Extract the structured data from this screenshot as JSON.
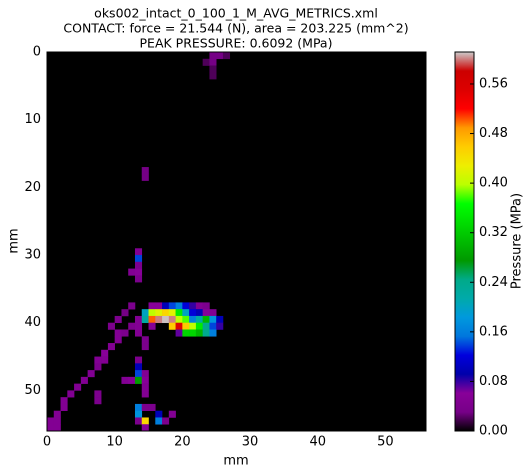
{
  "chart_data": {
    "type": "heatmap",
    "title": [
      "oks002_intact_0_100_1_M_AVG_METRICS.xml",
      "CONTACT: force = 21.544 (N), area = 203.225 (mm^2)",
      "PEAK PRESSURE: 0.6092 (MPa)"
    ],
    "x_label": "mm",
    "y_label": "mm",
    "colorbar_label": "Pressure (MPa)",
    "colormap": "nipy_spectral",
    "background": "#000000",
    "xlim": [
      0,
      56
    ],
    "ylim": [
      56,
      0
    ],
    "xticks": [
      0,
      10,
      20,
      30,
      40,
      50
    ],
    "yticks": [
      0,
      10,
      20,
      30,
      40,
      50
    ],
    "clim": [
      0,
      0.6116
    ],
    "cticks": [
      {
        "value": 0,
        "label": "0.00"
      },
      {
        "value": 0.08,
        "label": "0.08"
      },
      {
        "value": 0.16,
        "label": "0.16"
      },
      {
        "value": 0.24,
        "label": "0.24"
      },
      {
        "value": 0.32,
        "label": "0.32"
      },
      {
        "value": 0.4,
        "label": "0.40"
      },
      {
        "value": 0.48,
        "label": "0.48"
      },
      {
        "value": 0.56,
        "label": "0.56"
      }
    ],
    "cells": [
      [
        0,
        24,
        0.03
      ],
      [
        0,
        25,
        0.03
      ],
      [
        0,
        26,
        0.02
      ],
      [
        1,
        23,
        0.02
      ],
      [
        1,
        24,
        0.03
      ],
      [
        2,
        24,
        0.02
      ],
      [
        3,
        24,
        0.02
      ],
      [
        17,
        14,
        0.03
      ],
      [
        18,
        14,
        0.03
      ],
      [
        29,
        13,
        0.05
      ],
      [
        30,
        13,
        0.14
      ],
      [
        31,
        13,
        0.04
      ],
      [
        32,
        12,
        0.05
      ],
      [
        32,
        13,
        0.06
      ],
      [
        33,
        13,
        0.04
      ],
      [
        37,
        12,
        0.04
      ],
      [
        37,
        15,
        0.06
      ],
      [
        37,
        16,
        0.06
      ],
      [
        37,
        17,
        0.1
      ],
      [
        37,
        18,
        0.14
      ],
      [
        37,
        19,
        0.16
      ],
      [
        37,
        20,
        0.12
      ],
      [
        37,
        21,
        0.08
      ],
      [
        37,
        22,
        0.05
      ],
      [
        37,
        23,
        0.04
      ],
      [
        38,
        11,
        0.03
      ],
      [
        38,
        14,
        0.2
      ],
      [
        38,
        15,
        0.4
      ],
      [
        38,
        16,
        0.42
      ],
      [
        38,
        17,
        0.45
      ],
      [
        38,
        18,
        0.42
      ],
      [
        38,
        19,
        0.35
      ],
      [
        38,
        20,
        0.2
      ],
      [
        38,
        21,
        0.12
      ],
      [
        38,
        22,
        0.1
      ],
      [
        38,
        23,
        0.06
      ],
      [
        38,
        24,
        0.05
      ],
      [
        39,
        10,
        0.04
      ],
      [
        39,
        13,
        0.05
      ],
      [
        39,
        14,
        0.22
      ],
      [
        39,
        15,
        0.5
      ],
      [
        39,
        16,
        0.6
      ],
      [
        39,
        17,
        0.61
      ],
      [
        39,
        18,
        0.6
      ],
      [
        39,
        19,
        0.4
      ],
      [
        39,
        20,
        0.38
      ],
      [
        39,
        21,
        0.16
      ],
      [
        39,
        22,
        0.22
      ],
      [
        39,
        23,
        0.3
      ],
      [
        39,
        24,
        0.18
      ],
      [
        39,
        25,
        0.1
      ],
      [
        40,
        9,
        0.04
      ],
      [
        40,
        12,
        0.04
      ],
      [
        40,
        13,
        0.05
      ],
      [
        40,
        15,
        0.06
      ],
      [
        40,
        18,
        0.46
      ],
      [
        40,
        19,
        0.55
      ],
      [
        40,
        20,
        0.46
      ],
      [
        40,
        21,
        0.4
      ],
      [
        40,
        22,
        0.35
      ],
      [
        40,
        23,
        0.24
      ],
      [
        40,
        24,
        0.14
      ],
      [
        40,
        25,
        0.08
      ],
      [
        41,
        10,
        0.05
      ],
      [
        41,
        11,
        0.04
      ],
      [
        41,
        13,
        0.05
      ],
      [
        41,
        19,
        0.07
      ],
      [
        41,
        20,
        0.33
      ],
      [
        41,
        21,
        0.33
      ],
      [
        41,
        22,
        0.3
      ],
      [
        41,
        23,
        0.24
      ],
      [
        41,
        24,
        0.16
      ],
      [
        42,
        10,
        0.05
      ],
      [
        42,
        14,
        0.04
      ],
      [
        43,
        9,
        0.05
      ],
      [
        43,
        14,
        0.04
      ],
      [
        44,
        8,
        0.06
      ],
      [
        45,
        7,
        0.05
      ],
      [
        45,
        8,
        0.05
      ],
      [
        45,
        13,
        0.04
      ],
      [
        46,
        7,
        0.04
      ],
      [
        46,
        13,
        0.1
      ],
      [
        47,
        6,
        0.05
      ],
      [
        47,
        13,
        0.14
      ],
      [
        47,
        14,
        0.05
      ],
      [
        48,
        5,
        0.05
      ],
      [
        48,
        11,
        0.05
      ],
      [
        48,
        12,
        0.06
      ],
      [
        48,
        13,
        0.28
      ],
      [
        48,
        14,
        0.06
      ],
      [
        49,
        4,
        0.05
      ],
      [
        49,
        14,
        0.05
      ],
      [
        50,
        3,
        0.05
      ],
      [
        50,
        7,
        0.04
      ],
      [
        50,
        14,
        0.05
      ],
      [
        51,
        2,
        0.05
      ],
      [
        51,
        7,
        0.04
      ],
      [
        52,
        2,
        0.05
      ],
      [
        52,
        13,
        0.16
      ],
      [
        52,
        14,
        0.04
      ],
      [
        52,
        15,
        0.04
      ],
      [
        53,
        1,
        0.05
      ],
      [
        53,
        13,
        0.18
      ],
      [
        53,
        16,
        0.1
      ],
      [
        53,
        18,
        0.05
      ],
      [
        54,
        0,
        0.05
      ],
      [
        54,
        1,
        0.05
      ],
      [
        54,
        13,
        0.04
      ],
      [
        54,
        14,
        0.45
      ],
      [
        54,
        16,
        0.16
      ],
      [
        54,
        17,
        0.04
      ],
      [
        55,
        0,
        0.05
      ],
      [
        55,
        1,
        0.05
      ],
      [
        55,
        14,
        0.06
      ]
    ]
  }
}
